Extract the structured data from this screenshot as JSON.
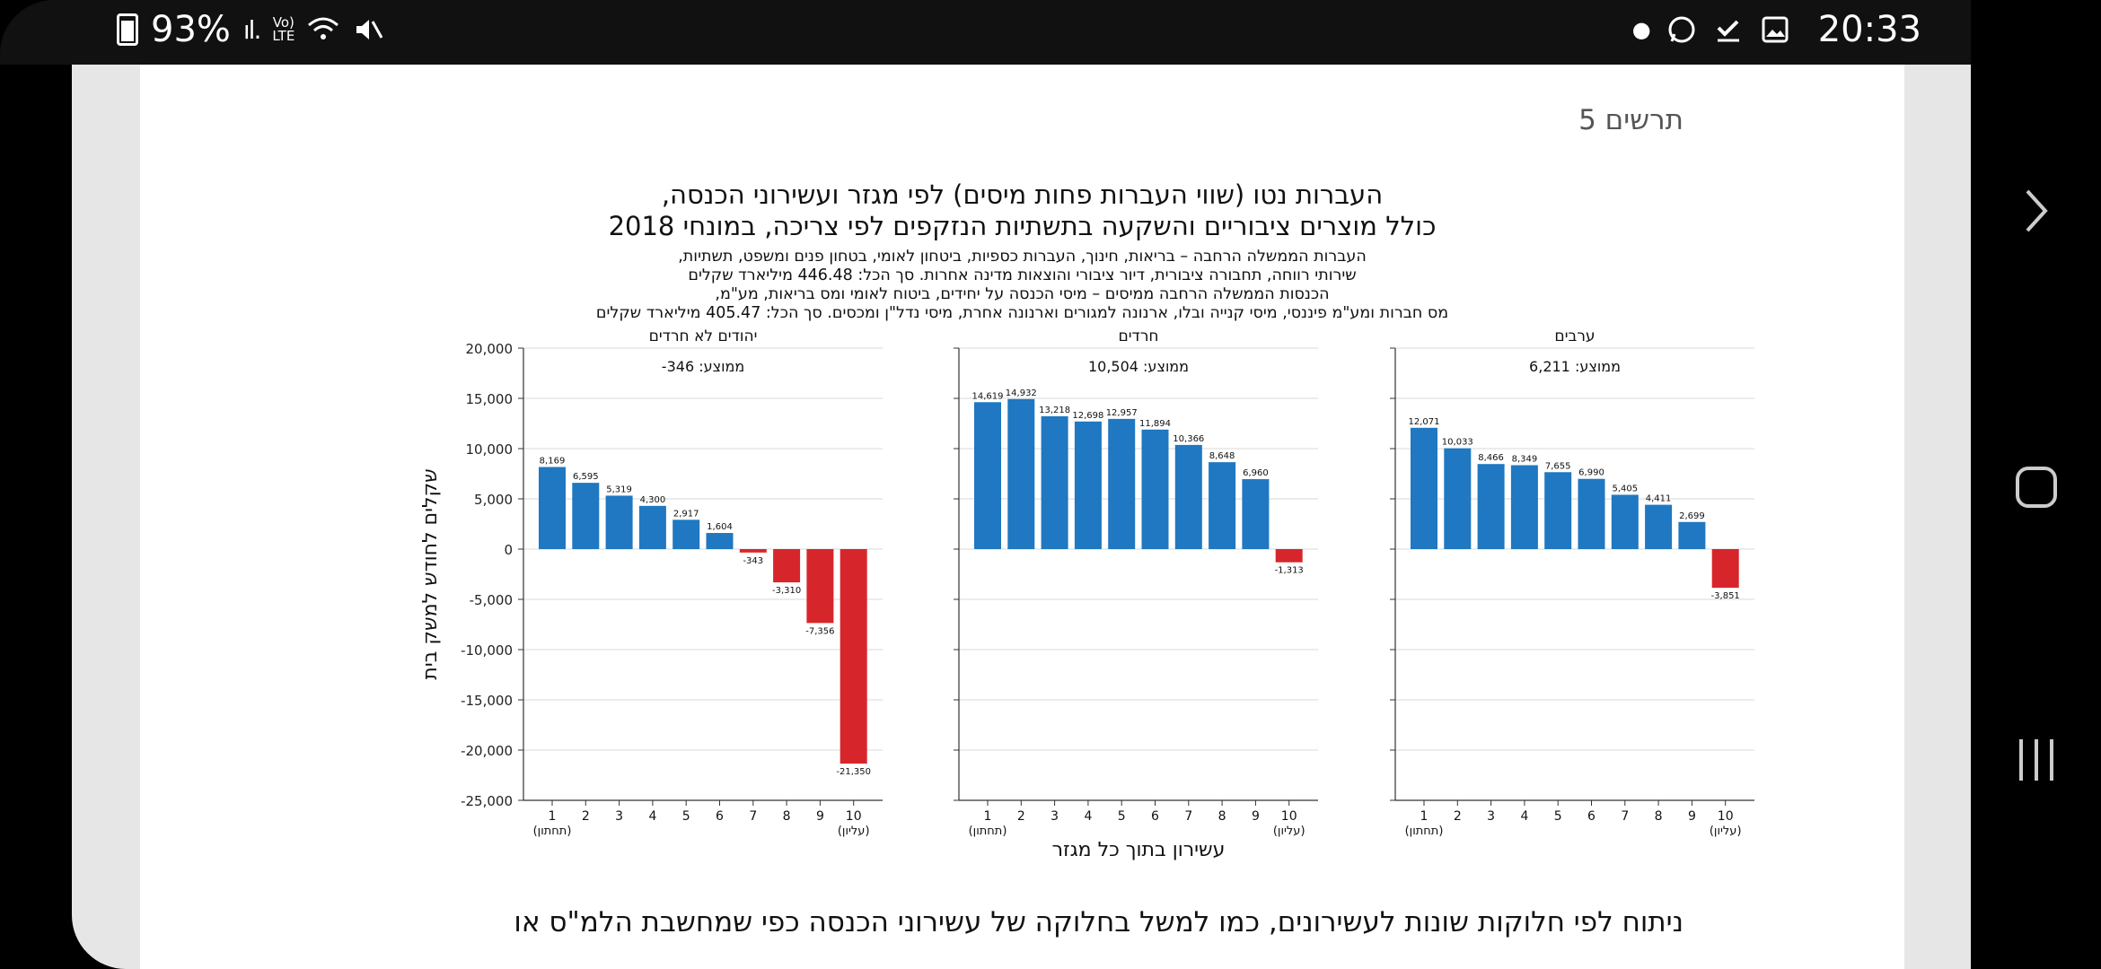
{
  "status_bar": {
    "battery": "93%",
    "network": "Vo) LTE",
    "time": "20:33",
    "icons": [
      "battery-icon",
      "signal-icon",
      "wifi-icon",
      "mute-icon",
      "dot-icon",
      "whatsapp-icon",
      "check-icon",
      "gallery-icon"
    ]
  },
  "nav": {
    "forward": "›",
    "home": "▢",
    "recents": "|||"
  },
  "figure_label": "תרשים 5",
  "title": {
    "line1": "העברות נטו (שווי העברות פחות מיסים) לפי מגזר ועשירוני הכנסה,",
    "line2": "כולל מוצרים ציבוריים והשקעה בתשתיות הנזקפים לפי צריכה, במונחי 2018",
    "sub1": "העברות הממשלה הרחבה – בריאות, חינוך, העברות כספיות, ביטחון לאומי, בטחון פנים ומשפט, תשתיות,",
    "sub2": "שירותי רווחה, תחבורה ציבורית, דיור ציבורי והוצאות מדינה אחרות. סך הכל: 446.48 מיליארד שקלים",
    "sub3": "הכנסות הממשלה הרחבה ממיסים – מיסי הכנסה על יחידים, ביטוח לאומי ומס בריאות, מע\"מ,",
    "sub4": "מס חברות ומע\"מ פיננסי, מיסי קנייה ובלו, ארנונה למגורים וארנונה אחרת, מיסי נדל\"ן ומכסים. סך הכל: 405.47 מיליארד שקלים"
  },
  "paragraph": "ניתוח לפי חלוקות שונות לעשירונים, כמו למשל בחלוקה של עשירוני הכנסה כפי שמחשבת הלמ\"ס או",
  "chart_data": {
    "type": "bar",
    "ylabel": "שקלים לחודש למשק בית",
    "xlabel": "עשירון בתוך כל מגזר",
    "ylim": [
      -25000,
      20000
    ],
    "yticks": [
      "20,000",
      "15,000",
      "10,000",
      "5,000",
      "0",
      "-5,000",
      "-10,000",
      "-15,000",
      "-20,000",
      "-25,000"
    ],
    "categories": [
      "1",
      "2",
      "3",
      "4",
      "5",
      "6",
      "7",
      "8",
      "9",
      "10"
    ],
    "first_note": "(תחתון)",
    "last_note": "(עליון)",
    "panels": [
      {
        "name": "יהודים לא חרדים",
        "avg_label": "ממוצע: 346-",
        "values": [
          8169,
          6595,
          5319,
          4300,
          2917,
          1604,
          -343,
          -3310,
          -7356,
          -21350
        ],
        "labels": [
          "8,169",
          "6,595",
          "5,319",
          "4,300",
          "2,917",
          "1,604",
          "-343",
          "-3,310",
          "-7,356",
          "-21,350"
        ]
      },
      {
        "name": "חרדים",
        "avg_label": "ממוצע: 10,504",
        "values": [
          14619,
          14932,
          13218,
          12698,
          12957,
          11894,
          10366,
          8648,
          6960,
          -1313
        ],
        "labels": [
          "14,619",
          "14,932",
          "13,218",
          "12,698",
          "12,957",
          "11,894",
          "10,366",
          "8,648",
          "6,960",
          "-1,313"
        ]
      },
      {
        "name": "ערבים",
        "avg_label": "ממוצע: 6,211",
        "values": [
          12071,
          10033,
          8466,
          8349,
          7655,
          6990,
          5405,
          4411,
          2699,
          -3851
        ],
        "labels": [
          "12,071",
          "10,033",
          "8,466",
          "8,349",
          "7,655",
          "6,990",
          "5,405",
          "4,411",
          "2,699",
          "-3,851"
        ]
      }
    ],
    "colors": {
      "positive": "#1f78c1",
      "negative": "#d7262b",
      "grid": "#d9d9d9",
      "axis": "#333333"
    }
  }
}
